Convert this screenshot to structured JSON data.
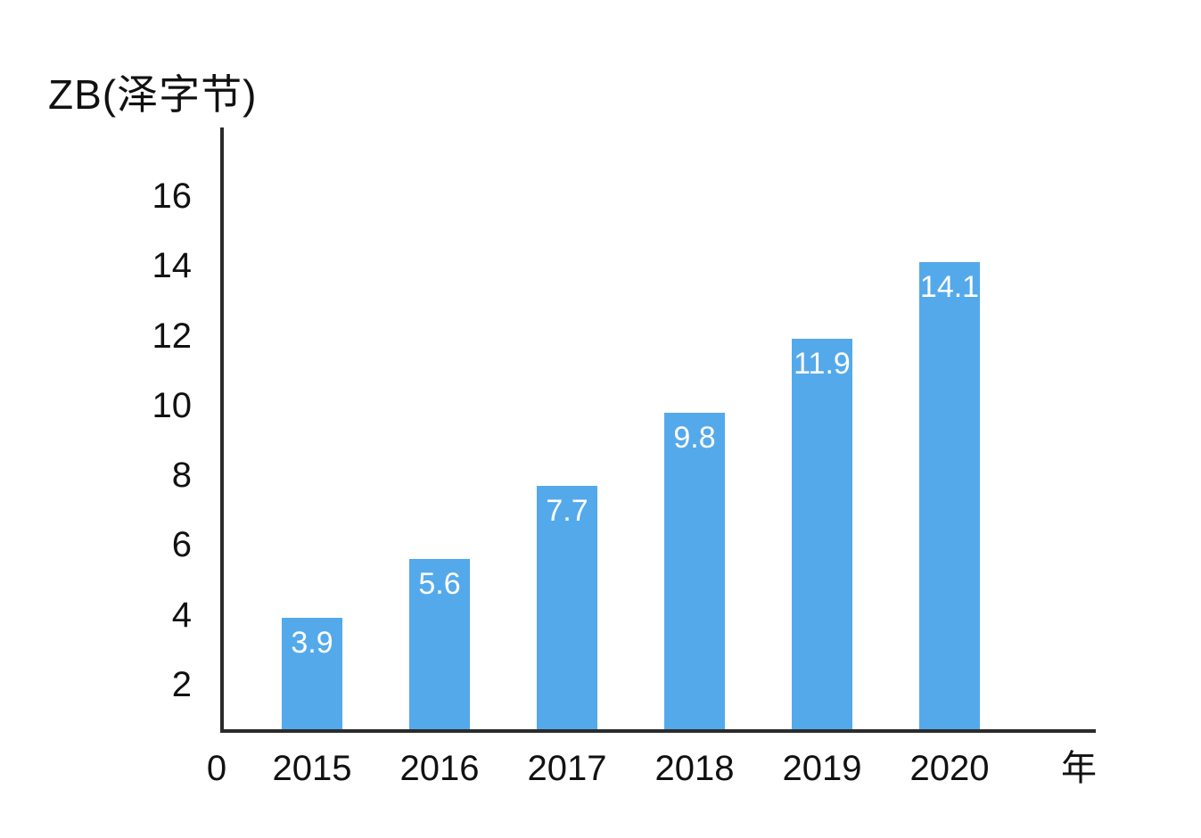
{
  "chart_data": {
    "type": "bar",
    "title": "ZB(泽字节)",
    "categories": [
      "2015",
      "2016",
      "2017",
      "2018",
      "2019",
      "2020"
    ],
    "values": [
      3.9,
      5.6,
      7.7,
      9.8,
      11.9,
      14.1
    ],
    "bar_labels": [
      "3.9",
      "5.6",
      "7.7",
      "9.8",
      "11.9",
      "14.1"
    ],
    "y_ticks": [
      2,
      4,
      6,
      8,
      10,
      12,
      14,
      16
    ],
    "ylim": [
      0,
      16
    ],
    "ylabel": "ZB(泽字节)",
    "xlabel": "年",
    "origin_label": "0",
    "grid": false,
    "legend": false,
    "colors": {
      "bar": "#54A9EB",
      "axis": "#2B2B2B",
      "text": "#111111",
      "bar_label": "#FFFFFF"
    }
  }
}
